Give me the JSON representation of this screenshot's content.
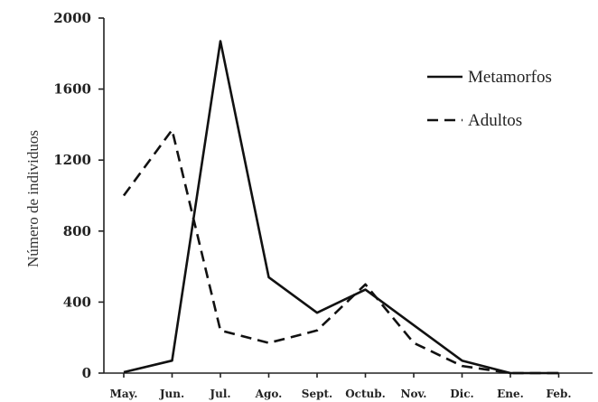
{
  "chart_data": {
    "type": "line",
    "ylabel": "Número de individuos",
    "xlabel": "",
    "title": "",
    "categories": [
      "May.",
      "Jun.",
      "Jul.",
      "Ago.",
      "Sept.",
      "Octub.",
      "Nov.",
      "Dic.",
      "Ene.",
      "Feb."
    ],
    "yticks": [
      0,
      400,
      800,
      1200,
      1600,
      2000
    ],
    "ylim": [
      0,
      2000
    ],
    "grid": false,
    "legend_position": "top-right",
    "series": [
      {
        "name": "Metamorfos",
        "style": "solid",
        "color": "#111111",
        "values": [
          5,
          70,
          1870,
          540,
          340,
          470,
          270,
          70,
          0,
          0
        ]
      },
      {
        "name": "Adultos",
        "style": "dashed",
        "color": "#111111",
        "values": [
          1000,
          1370,
          240,
          170,
          240,
          500,
          170,
          40,
          0,
          0
        ]
      }
    ]
  }
}
